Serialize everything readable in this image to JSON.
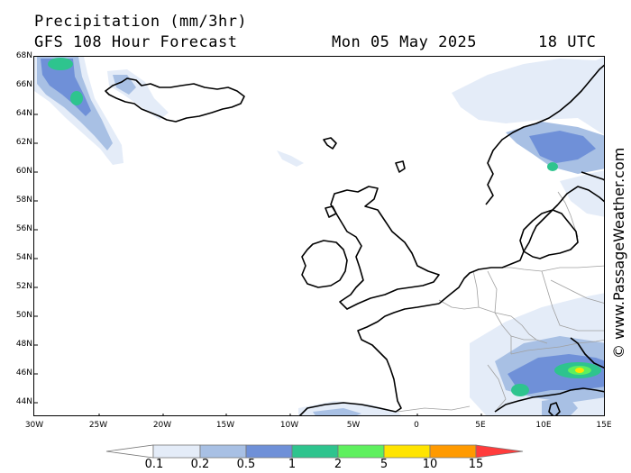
{
  "header": {
    "title": "Precipitation (mm/3hr)",
    "subtitle": "GFS 108 Hour Forecast",
    "date": "Mon 05 May 2025",
    "time": "18 UTC"
  },
  "map": {
    "lat_labels": [
      "68N",
      "66N",
      "64N",
      "62N",
      "60N",
      "58N",
      "56N",
      "54N",
      "52N",
      "50N",
      "48N",
      "46N",
      "44N"
    ],
    "lon_labels": [
      "30W",
      "25W",
      "20W",
      "15W",
      "10W",
      "5W",
      "0",
      "5E",
      "10E",
      "15E"
    ],
    "land_color": "#ffffff",
    "coast_color": "#000000",
    "border_color": "#a0a0a0"
  },
  "watermark": "© www.PassageWeather.com",
  "legend": {
    "labels": [
      "0.1",
      "0.2",
      "0.5",
      "1",
      "2",
      "5",
      "10",
      "15"
    ],
    "colors": [
      "#ffffff",
      "#e4ecf8",
      "#a8c0e4",
      "#6f90d8",
      "#2ec48e",
      "#5ef05e",
      "#ffe400",
      "#ff9a00",
      "#ff3c3c"
    ]
  }
}
